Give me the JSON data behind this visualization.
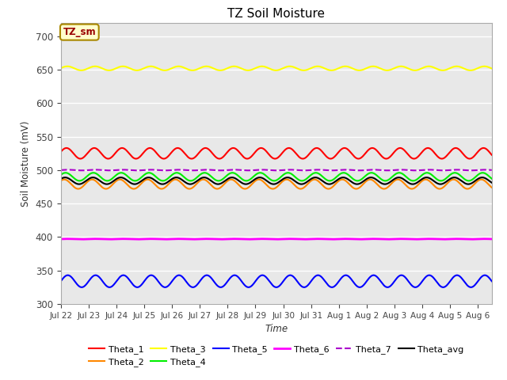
{
  "title": "TZ Soil Moisture",
  "xlabel": "Time",
  "ylabel": "Soil Moisture (mV)",
  "ylim": [
    300,
    720
  ],
  "yticks": [
    300,
    350,
    400,
    450,
    500,
    550,
    600,
    650,
    700
  ],
  "num_days": 15.5,
  "num_points": 2000,
  "lines": {
    "Theta_1": {
      "color": "#ff0000",
      "base": 525,
      "amp": 8,
      "freq": 1.0,
      "phase": 0.3,
      "lw": 1.5,
      "ls": "-"
    },
    "Theta_2": {
      "color": "#ff8800",
      "base": 479,
      "amp": 7,
      "freq": 1.0,
      "phase": 0.8,
      "lw": 1.5,
      "ls": "-"
    },
    "Theta_3": {
      "color": "#ffff00",
      "base": 652,
      "amp": 3,
      "freq": 1.0,
      "phase": 0.1,
      "lw": 1.5,
      "ls": "-"
    },
    "Theta_4": {
      "color": "#00ee00",
      "base": 490,
      "amp": 6,
      "freq": 1.0,
      "phase": 0.5,
      "lw": 1.5,
      "ls": "-"
    },
    "Theta_5": {
      "color": "#0000ff",
      "base": 334,
      "amp": 9,
      "freq": 1.0,
      "phase": 0.0,
      "lw": 1.5,
      "ls": "-"
    },
    "Theta_6": {
      "color": "#ff00ff",
      "base": 397,
      "amp": 0.3,
      "freq": 1.0,
      "phase": 0.0,
      "lw": 2.0,
      "ls": "-"
    },
    "Theta_7": {
      "color": "#aa00cc",
      "base": 500,
      "amp": 0.5,
      "freq": 1.0,
      "phase": 0.0,
      "lw": 1.5,
      "ls": "--"
    },
    "Theta_avg": {
      "color": "#000000",
      "base": 484,
      "amp": 5,
      "freq": 1.0,
      "phase": 0.6,
      "lw": 1.5,
      "ls": "-"
    }
  },
  "legend_rows": [
    [
      "Theta_1",
      "Theta_2",
      "Theta_3",
      "Theta_4",
      "Theta_5",
      "Theta_6"
    ],
    [
      "Theta_7",
      "Theta_avg"
    ]
  ],
  "background_color": "#e8e8e8",
  "label_box_color": "#ffffcc",
  "label_box_edge_color": "#aa8800",
  "label_box_text_color": "#990000",
  "label_text": "TZ_sm",
  "xtick_labels": [
    "Jul 22",
    "Jul 23",
    "Jul 24",
    "Jul 25",
    "Jul 26",
    "Jul 27",
    "Jul 28",
    "Jul 29",
    "Jul 30",
    "Jul 31",
    "Aug 1",
    "Aug 2",
    "Aug 3",
    "Aug 4",
    "Aug 5",
    "Aug 6"
  ],
  "xtick_positions": [
    0,
    1,
    2,
    3,
    4,
    5,
    6,
    7,
    8,
    9,
    10,
    11,
    12,
    13,
    14,
    15
  ]
}
